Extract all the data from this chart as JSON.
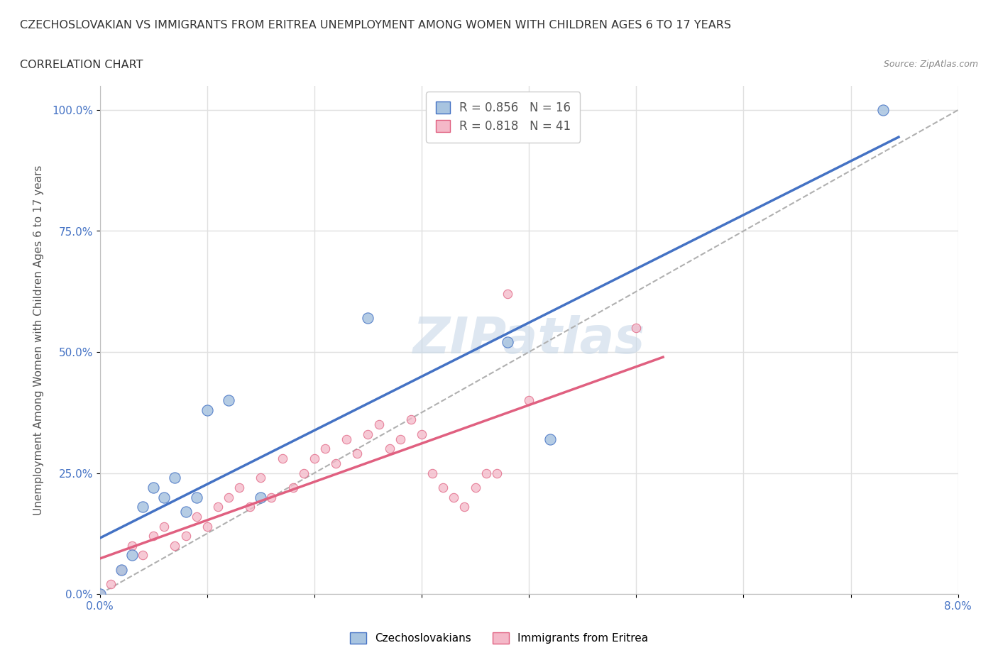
{
  "title": "CZECHOSLOVAKIAN VS IMMIGRANTS FROM ERITREA UNEMPLOYMENT AMONG WOMEN WITH CHILDREN AGES 6 TO 17 YEARS",
  "subtitle": "CORRELATION CHART",
  "source": "Source: ZipAtlas.com",
  "xlabel_bottom": "",
  "ylabel": "Unemployment Among Women with Children Ages 6 to 17 years",
  "xlim": [
    0.0,
    0.08
  ],
  "ylim": [
    0.0,
    1.05
  ],
  "xticks": [
    0.0,
    0.01,
    0.02,
    0.03,
    0.04,
    0.05,
    0.06,
    0.07,
    0.08
  ],
  "xtick_labels": [
    "0.0%",
    "",
    "",
    "",
    "",
    "",
    "",
    "",
    "8.0%"
  ],
  "ytick_positions": [
    0.0,
    0.25,
    0.5,
    0.75,
    1.0
  ],
  "ytick_labels": [
    "0.0%",
    "25.0%",
    "50.0%",
    "75.0%",
    "100.0%"
  ],
  "legend_blue_r": "R = 0.856",
  "legend_blue_n": "N = 16",
  "legend_pink_r": "R = 0.818",
  "legend_pink_n": "N = 41",
  "legend_label_blue": "Czechoslovakians",
  "legend_label_pink": "Immigrants from Eritrea",
  "blue_color": "#a8c4e0",
  "blue_line_color": "#4472c4",
  "pink_color": "#f4b8c8",
  "pink_line_color": "#e06080",
  "watermark": "ZIPatlas",
  "watermark_color": "#c8d8e8",
  "blue_scatter_x": [
    0.0,
    0.002,
    0.003,
    0.004,
    0.005,
    0.006,
    0.007,
    0.008,
    0.009,
    0.01,
    0.012,
    0.015,
    0.025,
    0.038,
    0.042,
    0.073
  ],
  "blue_scatter_y": [
    0.0,
    0.05,
    0.08,
    0.18,
    0.22,
    0.2,
    0.24,
    0.17,
    0.2,
    0.38,
    0.4,
    0.2,
    0.57,
    0.52,
    0.32,
    1.0
  ],
  "pink_scatter_x": [
    0.0,
    0.001,
    0.002,
    0.003,
    0.004,
    0.005,
    0.006,
    0.007,
    0.008,
    0.009,
    0.01,
    0.011,
    0.012,
    0.013,
    0.014,
    0.015,
    0.016,
    0.017,
    0.018,
    0.019,
    0.02,
    0.021,
    0.022,
    0.023,
    0.024,
    0.025,
    0.026,
    0.027,
    0.028,
    0.029,
    0.03,
    0.031,
    0.032,
    0.033,
    0.034,
    0.035,
    0.036,
    0.037,
    0.038,
    0.04,
    0.05
  ],
  "pink_scatter_y": [
    0.0,
    0.02,
    0.05,
    0.1,
    0.08,
    0.12,
    0.14,
    0.1,
    0.12,
    0.16,
    0.14,
    0.18,
    0.2,
    0.22,
    0.18,
    0.24,
    0.2,
    0.28,
    0.22,
    0.25,
    0.28,
    0.3,
    0.27,
    0.32,
    0.29,
    0.33,
    0.35,
    0.3,
    0.32,
    0.36,
    0.33,
    0.25,
    0.22,
    0.2,
    0.18,
    0.22,
    0.25,
    0.25,
    0.62,
    0.4,
    0.55
  ],
  "grid_color": "#e0e0e0"
}
